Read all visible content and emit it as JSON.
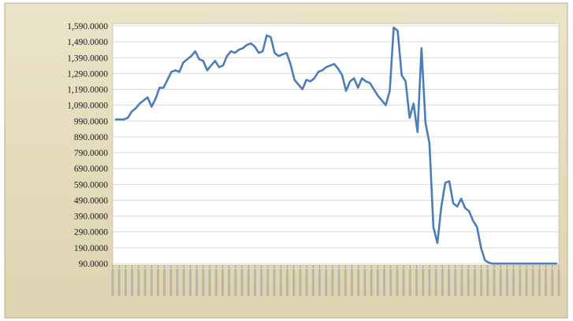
{
  "chart_data": {
    "type": "line",
    "title": "",
    "xlabel": "",
    "ylabel": "",
    "ylim": [
      90,
      1590
    ],
    "yticks": [
      1590,
      1490,
      1390,
      1290,
      1190,
      1090,
      990,
      890,
      790,
      690,
      590,
      490,
      390,
      290,
      190,
      90
    ],
    "ytick_labels": [
      "1,590.0000",
      "1,490.0000",
      "1,390.0000",
      "1,290.0000",
      "1,190.0000",
      "1,090.0000",
      "990.0000",
      "890.0000",
      "790.0000",
      "690.0000",
      "590.0000",
      "490.0000",
      "390.0000",
      "290.0000",
      "190.0000",
      "90.0000"
    ],
    "grid": "horizontal",
    "legend": "none",
    "line_color": "#4a7ebb",
    "x_tick_count": 70,
    "series": [
      {
        "values": [
          1000,
          1000,
          1000,
          1010,
          1050,
          1070,
          1100,
          1120,
          1140,
          1080,
          1130,
          1200,
          1200,
          1250,
          1300,
          1310,
          1300,
          1360,
          1380,
          1400,
          1430,
          1380,
          1370,
          1310,
          1340,
          1370,
          1330,
          1340,
          1400,
          1430,
          1420,
          1440,
          1450,
          1470,
          1480,
          1460,
          1420,
          1430,
          1530,
          1520,
          1420,
          1400,
          1410,
          1420,
          1350,
          1250,
          1220,
          1190,
          1250,
          1240,
          1260,
          1300,
          1310,
          1330,
          1340,
          1350,
          1320,
          1280,
          1180,
          1240,
          1260,
          1200,
          1260,
          1240,
          1230,
          1190,
          1150,
          1120,
          1090,
          1180,
          1580,
          1560,
          1280,
          1240,
          1010,
          1100,
          920,
          1450,
          980,
          850,
          320,
          220,
          450,
          600,
          610,
          470,
          450,
          500,
          440,
          420,
          360,
          320,
          190,
          110,
          95,
          90,
          90,
          90,
          90,
          90,
          90,
          90,
          90,
          90,
          90,
          90,
          90,
          90,
          90,
          90,
          90,
          90
        ]
      }
    ]
  }
}
